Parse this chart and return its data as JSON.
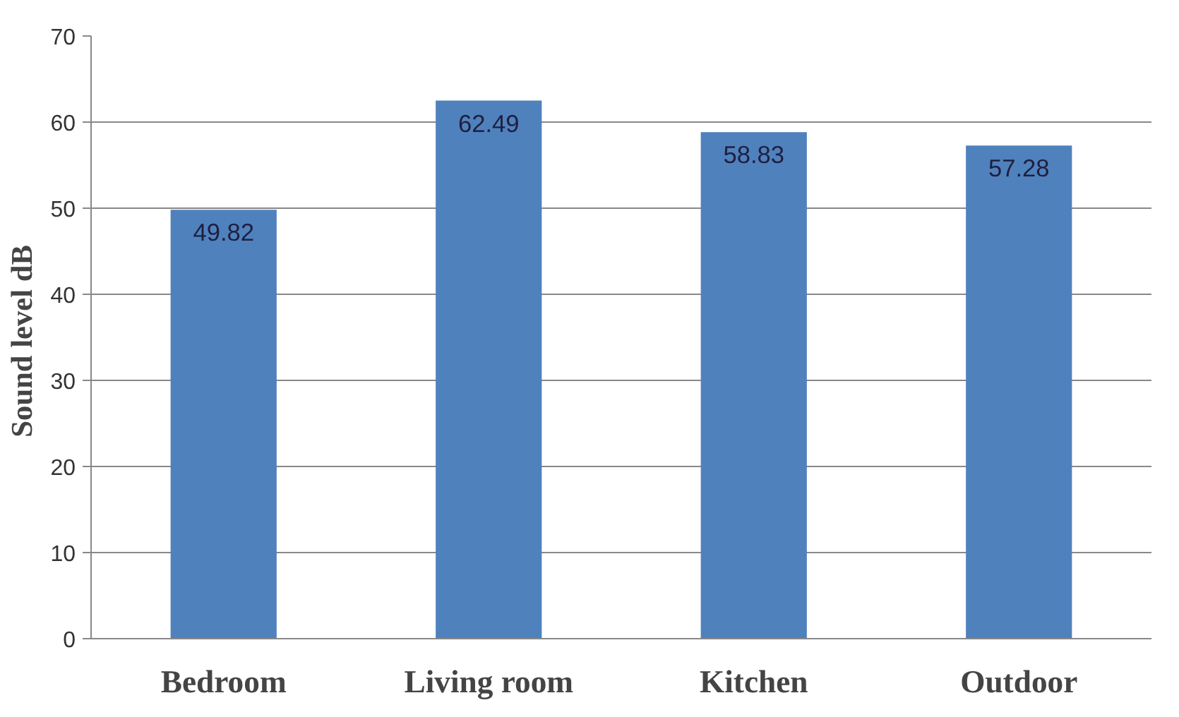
{
  "chart_data": {
    "type": "bar",
    "ylabel": "Sound level  dB",
    "categories": [
      "Bedroom",
      "Living room",
      "Kitchen",
      "Outdoor"
    ],
    "values": [
      49.82,
      62.49,
      58.83,
      57.28
    ],
    "color": "#4f81bd",
    "ylim": [
      0,
      70
    ],
    "yticks": [
      0,
      10,
      20,
      30,
      40,
      50,
      60,
      70
    ],
    "grid": "y",
    "data_labels": true
  }
}
